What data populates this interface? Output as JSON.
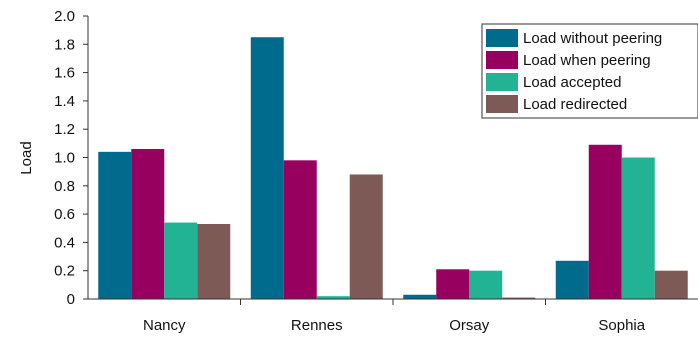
{
  "chart_data": {
    "type": "bar",
    "title": "",
    "xlabel": "",
    "ylabel": "Load",
    "ylim": [
      0,
      2.0
    ],
    "yticks": [
      "0",
      "0.2",
      "0.4",
      "0.6",
      "0.8",
      "1.0",
      "1.2",
      "1.4",
      "1.6",
      "1.8",
      "2.0"
    ],
    "categories": [
      "Nancy",
      "Rennes",
      "Orsay",
      "Sophia"
    ],
    "series": [
      {
        "name": "Load without peering",
        "color": "#006b8c",
        "values": [
          1.04,
          1.85,
          0.03,
          0.27
        ]
      },
      {
        "name": "Load when peering",
        "color": "#980060",
        "values": [
          1.06,
          0.98,
          0.21,
          1.09
        ]
      },
      {
        "name": "Load accepted",
        "color": "#22b394",
        "values": [
          0.54,
          0.02,
          0.2,
          1.0
        ]
      },
      {
        "name": "Load redirected",
        "color": "#7e5a56",
        "values": [
          0.53,
          0.88,
          0.01,
          0.2
        ]
      }
    ],
    "grid": false,
    "legend_position": "top-right"
  }
}
